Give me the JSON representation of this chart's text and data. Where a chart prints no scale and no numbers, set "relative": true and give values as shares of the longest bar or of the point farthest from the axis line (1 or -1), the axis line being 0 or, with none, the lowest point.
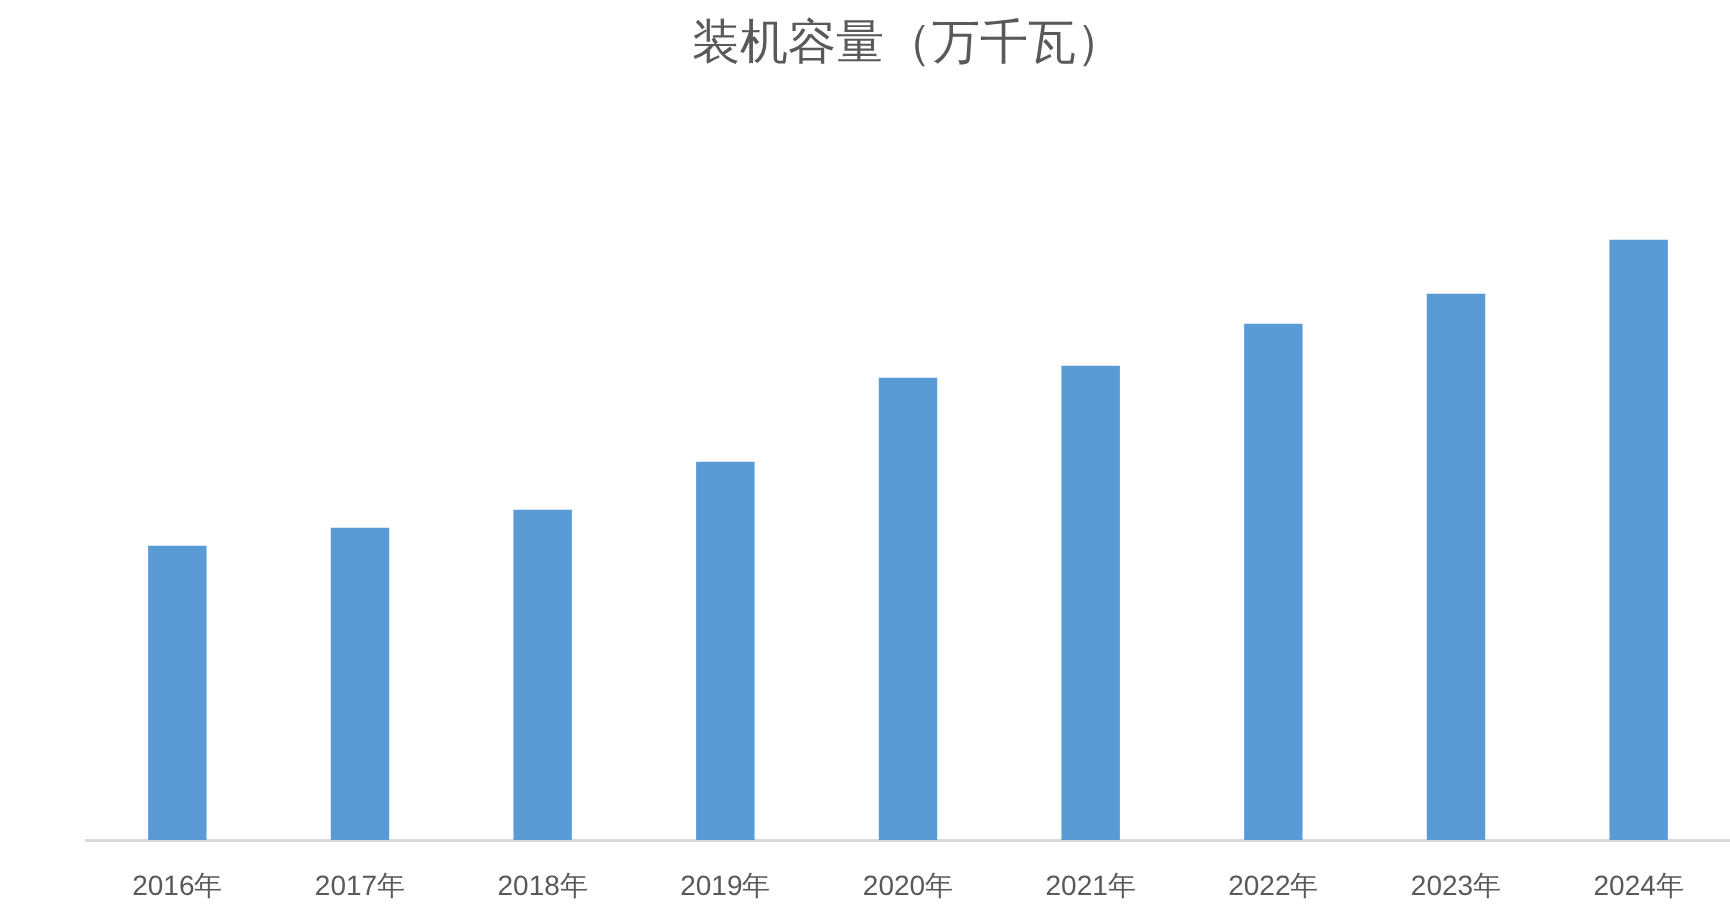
{
  "chart_data": {
    "type": "bar",
    "title": "装机容量（万千瓦）",
    "relative": true,
    "categories": [
      "2016年",
      "2017年",
      "2018年",
      "2019年",
      "2020年",
      "2021年",
      "2022年",
      "2023年",
      "2024年"
    ],
    "values": [
      0.49,
      0.52,
      0.55,
      0.63,
      0.77,
      0.79,
      0.86,
      0.91,
      1
    ],
    "color": "#5b9bd5"
  }
}
